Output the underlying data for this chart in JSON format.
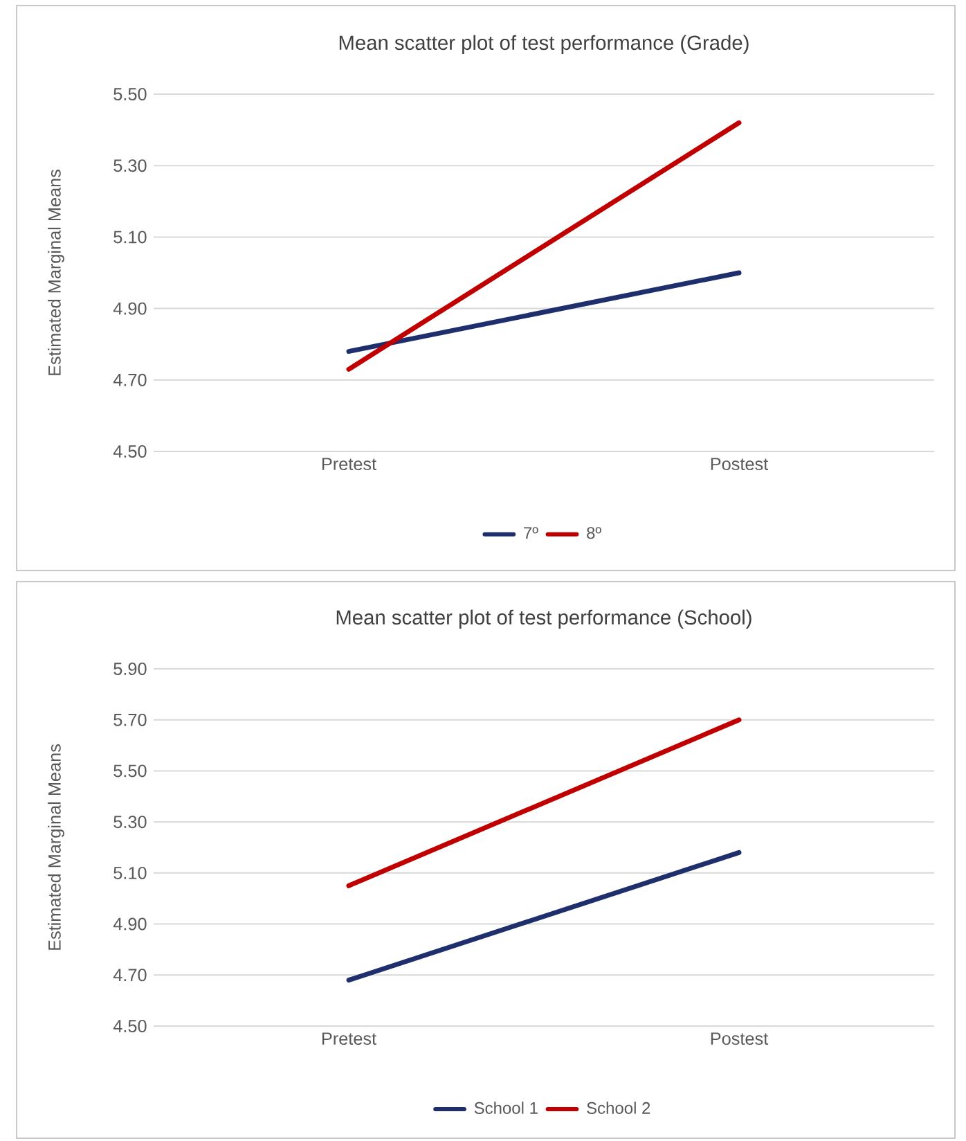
{
  "chart_data": [
    {
      "type": "line",
      "title": "Mean scatter plot of test performance (Grade)",
      "ylabel": "Estimated Marginal Means",
      "categories": [
        "Pretest",
        "Postest"
      ],
      "series": [
        {
          "name": "7º",
          "color": "#1f2f6e",
          "values": [
            4.78,
            5.0
          ]
        },
        {
          "name": "8º",
          "color": "#c00000",
          "values": [
            4.73,
            5.42
          ]
        }
      ],
      "ylim": [
        4.5,
        5.5
      ],
      "yticks": [
        {
          "value": 4.5,
          "label": "4.50"
        },
        {
          "value": 4.7,
          "label": "4.70"
        },
        {
          "value": 4.9,
          "label": "4.90"
        },
        {
          "value": 5.1,
          "label": "5.10"
        },
        {
          "value": 5.3,
          "label": "5.30"
        },
        {
          "value": 5.5,
          "label": "5.50"
        }
      ],
      "grid": "y",
      "legend": "bottom",
      "line_style": "solid"
    },
    {
      "type": "line",
      "title": "Mean scatter plot of test performance (School)",
      "ylabel": "Estimated Marginal Means",
      "categories": [
        "Pretest",
        "Postest"
      ],
      "series": [
        {
          "name": "School 1",
          "color": "#1f2f6e",
          "values": [
            4.68,
            5.18
          ]
        },
        {
          "name": "School 2",
          "color": "#c00000",
          "values": [
            5.05,
            5.7
          ]
        }
      ],
      "ylim": [
        4.5,
        5.9
      ],
      "yticks": [
        {
          "value": 4.5,
          "label": "4.50"
        },
        {
          "value": 4.7,
          "label": "4.70"
        },
        {
          "value": 4.9,
          "label": "4.90"
        },
        {
          "value": 5.1,
          "label": "5.10"
        },
        {
          "value": 5.3,
          "label": "5.30"
        },
        {
          "value": 5.5,
          "label": "5.50"
        },
        {
          "value": 5.7,
          "label": "5.70"
        },
        {
          "value": 5.9,
          "label": "5.90"
        }
      ],
      "grid": "y",
      "legend": "bottom",
      "line_style": "solid"
    }
  ]
}
